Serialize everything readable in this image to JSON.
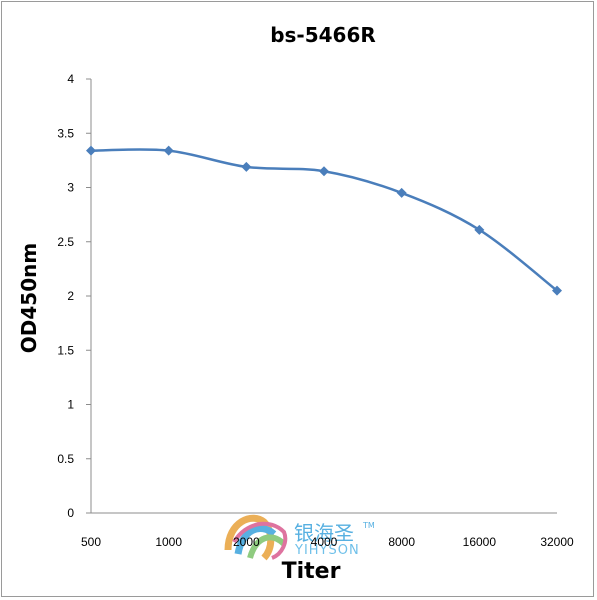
{
  "chart_data": {
    "type": "line",
    "title": "bs-5466R",
    "xlabel": "Titer",
    "ylabel": "OD450nm",
    "categories": [
      "500",
      "1000",
      "2000",
      "4000",
      "8000",
      "16000",
      "32000"
    ],
    "series": [
      {
        "values": [
          3.34,
          3.34,
          3.19,
          3.15,
          2.95,
          2.61,
          2.05
        ],
        "color": "#4a7ebb"
      }
    ],
    "ylim": [
      0,
      4
    ],
    "yticks": [
      "0",
      "0.5",
      "1",
      "1.5",
      "2",
      "2.5",
      "3",
      "3.5",
      "4"
    ],
    "grid": false,
    "legend": "none"
  },
  "watermark": {
    "chinese": "银海圣",
    "english": "YIHYSON",
    "tm": "TM",
    "colors": [
      "#e8a23a",
      "#3aa3dc",
      "#7cc36a",
      "#d95b8f"
    ]
  }
}
